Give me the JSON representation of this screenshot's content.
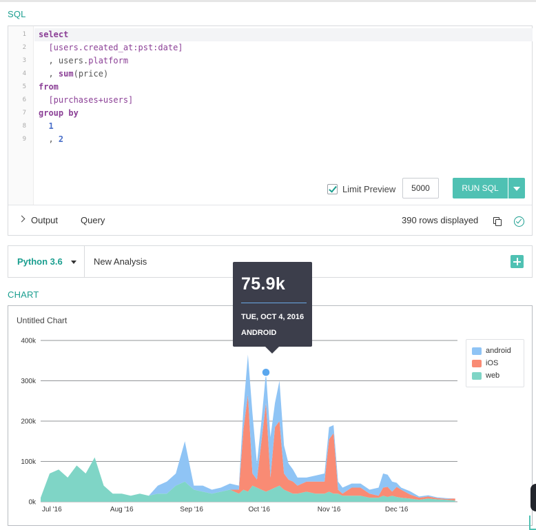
{
  "sql_section": {
    "label": "SQL",
    "line_numbers": [
      "1",
      "2",
      "3",
      "4",
      "5",
      "6",
      "7",
      "8",
      "9"
    ],
    "code_lines": [
      [
        {
          "t": "select",
          "c": "kw"
        }
      ],
      [
        {
          "t": "  [users.created_at:pst:date]",
          "c": "fn"
        }
      ],
      [
        {
          "t": "  , users.",
          "c": ""
        },
        {
          "t": "platform",
          "c": "fn"
        }
      ],
      [
        {
          "t": "  , ",
          "c": ""
        },
        {
          "t": "sum",
          "c": "kw"
        },
        {
          "t": "(price)",
          "c": ""
        }
      ],
      [
        {
          "t": "from",
          "c": "kw"
        }
      ],
      [
        {
          "t": "  [purchases+users]",
          "c": "fn"
        }
      ],
      [
        {
          "t": "group by",
          "c": "kw"
        }
      ],
      [
        {
          "t": "  1",
          "c": "num"
        }
      ],
      [
        {
          "t": "  , ",
          "c": ""
        },
        {
          "t": "2",
          "c": "num"
        }
      ]
    ],
    "limit_preview_label": "Limit Preview",
    "limit_preview_checked": true,
    "limit_value": "5000",
    "run_button_label": "RUN SQL",
    "output_tab": "Output",
    "query_tab": "Query",
    "rows_displayed": "390 rows displayed"
  },
  "python_bar": {
    "language": "Python 3.6",
    "analysis_name": "New Analysis"
  },
  "chart_section": {
    "label": "CHART",
    "title": "Untitled Chart"
  },
  "tooltip": {
    "value": "75.9k",
    "date": "TUE, OCT 4, 2016",
    "series": "ANDROID"
  },
  "colors": {
    "accent": "#1a9e8f",
    "button": "#4fc1b3",
    "android": "#8fc4f5",
    "ios": "#f98b74",
    "web": "#7fd5c6",
    "tooltip_bg": "#3c3e4b"
  },
  "chart_data": {
    "type": "area",
    "stacked": true,
    "title": "Untitled Chart",
    "x_tick_labels": [
      "Jul '16",
      "Aug '16",
      "Sep '16",
      "Oct '16",
      "Nov '16",
      "Dec '16"
    ],
    "ylim": [
      0,
      400000
    ],
    "y_ticks": [
      0,
      100000,
      200000,
      300000,
      400000
    ],
    "y_tick_labels": [
      "0k",
      "100k",
      "200k",
      "300k",
      "400k"
    ],
    "grid": true,
    "legend_position": "top-right",
    "x": [
      "2016-06-26",
      "2016-06-30",
      "2016-07-04",
      "2016-07-08",
      "2016-07-12",
      "2016-07-16",
      "2016-07-20",
      "2016-07-24",
      "2016-07-28",
      "2016-08-01",
      "2016-08-05",
      "2016-08-09",
      "2016-08-13",
      "2016-08-17",
      "2016-08-21",
      "2016-08-25",
      "2016-08-29",
      "2016-09-02",
      "2016-09-06",
      "2016-09-10",
      "2016-09-14",
      "2016-09-18",
      "2016-09-22",
      "2016-09-24",
      "2016-09-26",
      "2016-09-28",
      "2016-09-30",
      "2016-10-02",
      "2016-10-04",
      "2016-10-06",
      "2016-10-08",
      "2016-10-10",
      "2016-10-12",
      "2016-10-14",
      "2016-10-16",
      "2016-10-18",
      "2016-10-22",
      "2016-10-26",
      "2016-10-30",
      "2016-11-01",
      "2016-11-03",
      "2016-11-05",
      "2016-11-07",
      "2016-11-11",
      "2016-11-15",
      "2016-11-19",
      "2016-11-23",
      "2016-11-25",
      "2016-11-27",
      "2016-11-29",
      "2016-12-01",
      "2016-12-03",
      "2016-12-07",
      "2016-12-11",
      "2016-12-15",
      "2016-12-19",
      "2016-12-23",
      "2016-12-27"
    ],
    "series": [
      {
        "name": "web",
        "values": [
          10000,
          70000,
          80000,
          60000,
          90000,
          70000,
          110000,
          40000,
          20000,
          20000,
          15000,
          20000,
          15000,
          20000,
          20000,
          40000,
          50000,
          30000,
          25000,
          20000,
          25000,
          30000,
          20000,
          30000,
          25000,
          40000,
          35000,
          30000,
          25000,
          30000,
          35000,
          40000,
          30000,
          25000,
          20000,
          20000,
          25000,
          20000,
          20000,
          25000,
          20000,
          20000,
          15000,
          15000,
          15000,
          10000,
          10000,
          15000,
          12000,
          15000,
          12000,
          10000,
          8000,
          5000,
          8000,
          6000,
          5000,
          3000
        ]
      },
      {
        "name": "iOS",
        "values": [
          0,
          0,
          0,
          0,
          0,
          0,
          0,
          0,
          0,
          0,
          0,
          0,
          0,
          0,
          0,
          0,
          0,
          0,
          0,
          0,
          0,
          0,
          10000,
          150000,
          240000,
          30000,
          20000,
          120000,
          220000,
          30000,
          150000,
          160000,
          40000,
          30000,
          30000,
          20000,
          25000,
          30000,
          30000,
          130000,
          150000,
          10000,
          5000,
          20000,
          20000,
          10000,
          5000,
          20000,
          25000,
          10000,
          25000,
          20000,
          10000,
          5000,
          5000,
          3000,
          2000,
          5000
        ]
      },
      {
        "name": "android",
        "values": [
          0,
          0,
          0,
          0,
          0,
          0,
          0,
          0,
          0,
          0,
          0,
          0,
          0,
          20000,
          30000,
          30000,
          100000,
          10000,
          15000,
          10000,
          10000,
          15000,
          10000,
          50000,
          100000,
          150000,
          40000,
          50000,
          75900,
          100000,
          60000,
          100000,
          70000,
          40000,
          30000,
          20000,
          10000,
          15000,
          20000,
          30000,
          20000,
          20000,
          15000,
          10000,
          10000,
          10000,
          20000,
          35000,
          30000,
          25000,
          10000,
          5000,
          8000,
          3000,
          3000,
          2000,
          2000,
          0
        ]
      }
    ]
  }
}
